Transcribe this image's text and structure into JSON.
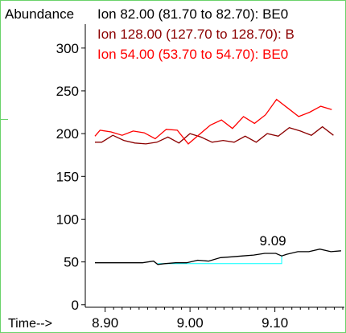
{
  "chart_data": {
    "type": "line",
    "ylabel": "Abundance",
    "xlabel": "Time-->",
    "xlim": [
      8.888,
      9.18
    ],
    "ylim": [
      -3,
      328
    ],
    "x_ticks": [
      8.9,
      9.0,
      9.1
    ],
    "x_tick_labels": [
      "8.90",
      "9.00",
      "9.10"
    ],
    "y_ticks": [
      0,
      50,
      100,
      150,
      200,
      250,
      300
    ],
    "y_tick_labels": [
      "0",
      "50",
      "100",
      "150",
      "200",
      "250",
      "300"
    ],
    "series": [
      {
        "name": "Ion  82.00 (81.70 to 82.70): BE0",
        "color": "#000000",
        "x": [
          8.888,
          8.905,
          8.918,
          8.931,
          8.944,
          8.957,
          8.962,
          8.97,
          8.983,
          8.996,
          9.009,
          9.022,
          9.036,
          9.049,
          9.062,
          9.075,
          9.088,
          9.101,
          9.108,
          9.114,
          9.127,
          9.14,
          9.153,
          9.166,
          9.178
        ],
        "y": [
          49,
          49,
          49,
          49,
          49,
          51,
          47,
          48,
          49,
          49,
          52,
          51,
          55,
          56,
          57,
          58,
          60,
          60,
          57,
          59,
          62,
          62,
          65,
          62,
          63
        ]
      },
      {
        "name": "Ion 128.00 (127.70 to 128.70): B",
        "color": "#8b0000",
        "x": [
          8.888,
          8.896,
          8.909,
          8.922,
          8.935,
          8.948,
          8.961,
          8.974,
          8.987,
          9.0,
          9.013,
          9.026,
          9.039,
          9.052,
          9.065,
          9.078,
          9.091,
          9.104,
          9.117,
          9.13,
          9.143,
          9.156,
          9.169
        ],
        "y": [
          190,
          190,
          198,
          192,
          189,
          188,
          190,
          196,
          189,
          200,
          196,
          190,
          192,
          190,
          197,
          190,
          200,
          197,
          207,
          203,
          198,
          208,
          198
        ]
      },
      {
        "name": "Ion  54.00 (53.70 to 54.70): BE0",
        "color": "#ff0000",
        "x": [
          8.888,
          8.894,
          8.907,
          8.92,
          8.933,
          8.946,
          8.959,
          8.972,
          8.985,
          8.998,
          9.011,
          9.024,
          9.037,
          9.05,
          9.063,
          9.076,
          9.089,
          9.102,
          9.115,
          9.128,
          9.141,
          9.154,
          9.167
        ],
        "y": [
          197,
          204,
          202,
          198,
          203,
          201,
          194,
          205,
          204,
          188,
          199,
          210,
          216,
          206,
          220,
          212,
          222,
          240,
          230,
          220,
          225,
          232,
          228
        ]
      }
    ],
    "annotations": [
      {
        "text": "9.09",
        "x": 9.09,
        "baseline": 48,
        "apex_y": 60,
        "start_x": 8.962,
        "end_x": 9.108,
        "color": "#00ffff"
      }
    ]
  }
}
